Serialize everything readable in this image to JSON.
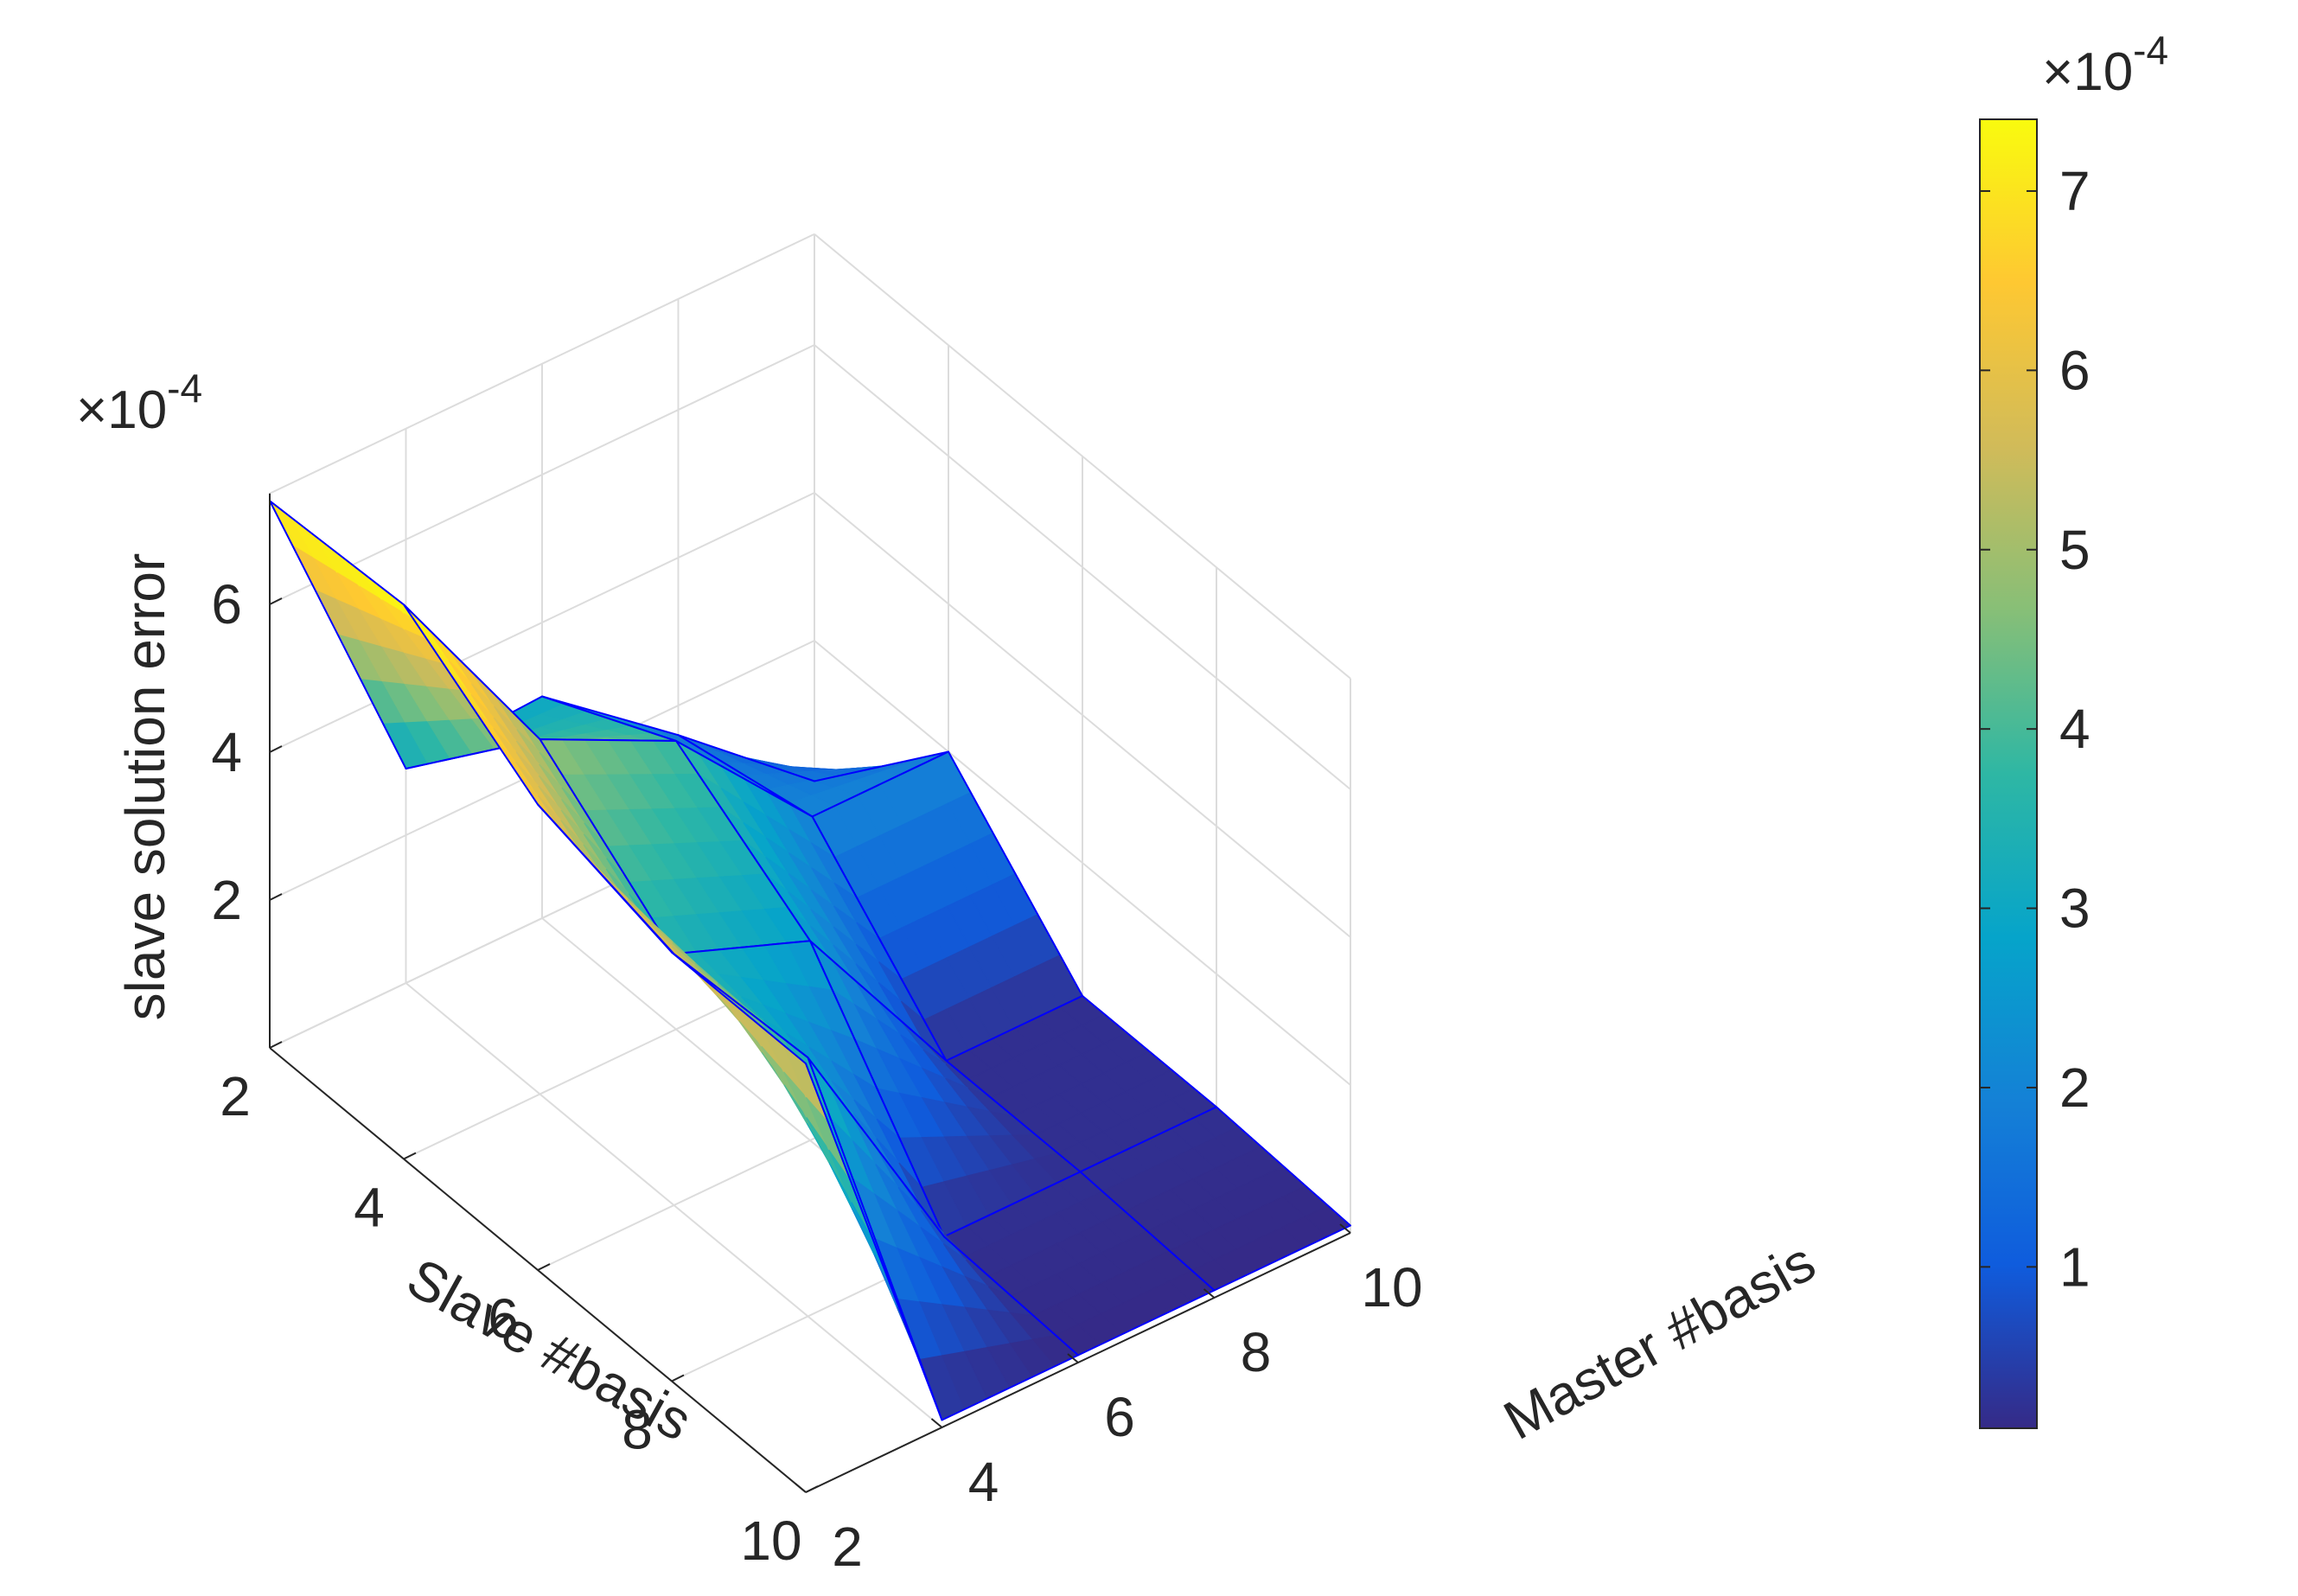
{
  "chart_data": {
    "type": "surface",
    "xlabel": "Slave #basis",
    "ylabel": "Master #basis",
    "zlabel": "slave solution error",
    "z_exponent_label": "×10",
    "exponent": "-4",
    "x_ticks": [
      "2",
      "4",
      "6",
      "8",
      "10"
    ],
    "y_ticks": [
      "2",
      "4",
      "6",
      "8",
      "10"
    ],
    "z_ticks": [
      "2",
      "4",
      "6"
    ],
    "colorbar_ticks": [
      "1",
      "2",
      "3",
      "4",
      "5",
      "6",
      "7"
    ],
    "colorbar_exponent_label": "×10",
    "colormap": "parula",
    "edge_color": "#0000ff",
    "grid": true,
    "slave_basis": [
      2,
      4,
      6,
      8,
      10
    ],
    "master_basis": [
      2,
      4,
      6,
      8,
      10
    ],
    "z_unit": "1e-4",
    "z_values": [
      [
        7.4,
        2.9,
        3.0,
        1.6,
        0.1
      ],
      [
        7.5,
        4.8,
        3.9,
        2.0,
        2.0
      ],
      [
        6.3,
        3.4,
        2.7,
        0.2,
        0.2
      ],
      [
        5.8,
        3.5,
        0.2,
        0.2,
        0.2
      ],
      [
        5.8,
        0.1,
        0.1,
        0.1,
        0.1
      ]
    ],
    "zlim": [
      0,
      7.5
    ],
    "clim": [
      0.1,
      7.4
    ]
  }
}
